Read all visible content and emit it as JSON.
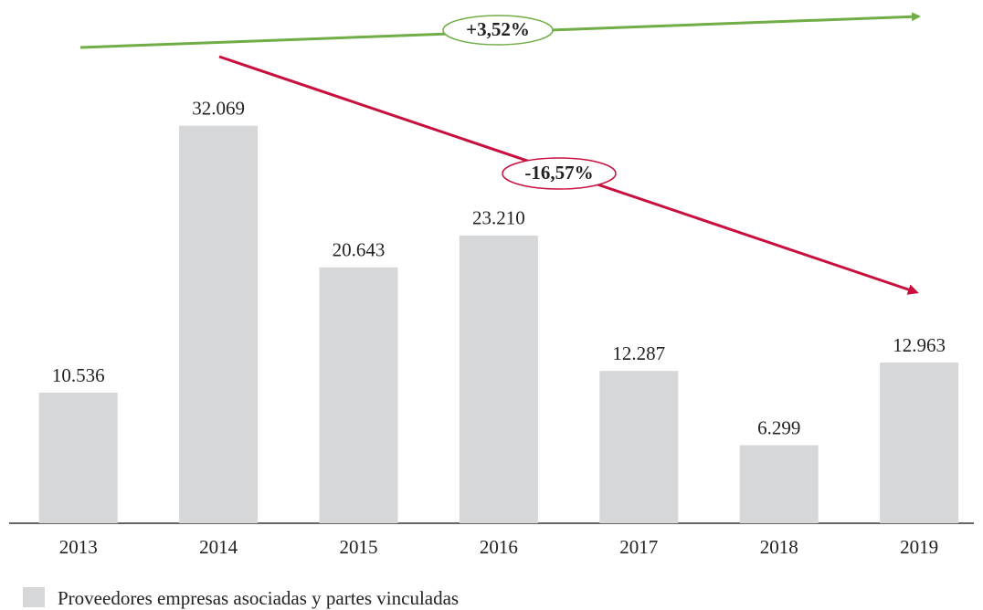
{
  "chart_data": {
    "type": "bar",
    "categories": [
      "2013",
      "2014",
      "2015",
      "2016",
      "2017",
      "2018",
      "2019"
    ],
    "series": [
      {
        "name": "Proveedores empresas asociadas y partes vinculadas",
        "color": "#d6d7d9",
        "values": [
          10536,
          32069,
          20643,
          23210,
          12287,
          6299,
          12963
        ],
        "value_labels": [
          "10.536",
          "32.069",
          "20.643",
          "23.210",
          "12.287",
          "6.299",
          "12.963"
        ]
      }
    ],
    "ylim": [
      0,
      40000
    ],
    "annotations": [
      {
        "text": "+3,52%",
        "color": "#70ad47"
      },
      {
        "text": "-16,57%",
        "color": "#c8103e"
      }
    ]
  }
}
